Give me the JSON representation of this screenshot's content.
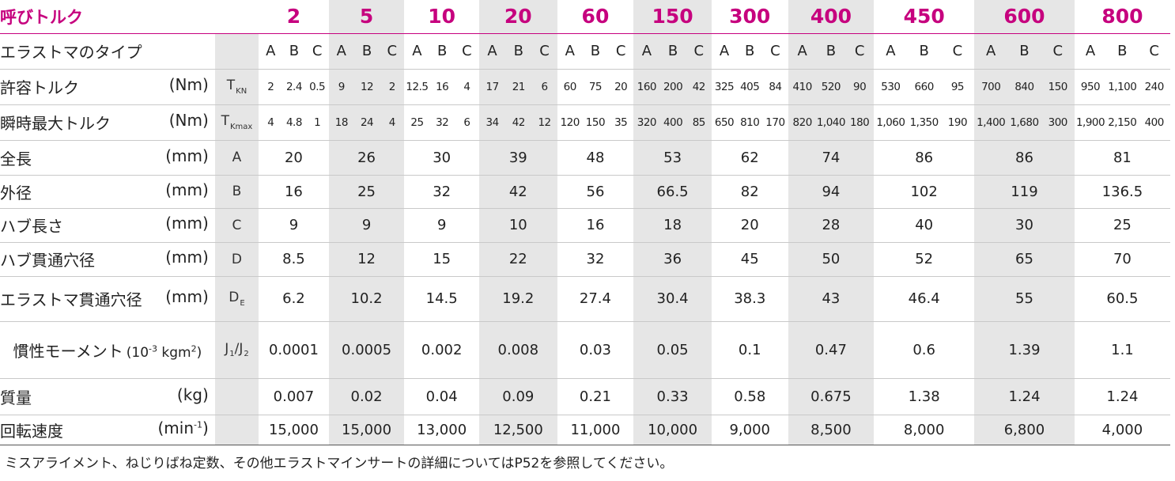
{
  "header": {
    "label": "呼びトルク",
    "sizes": [
      "2",
      "5",
      "10",
      "20",
      "60",
      "150",
      "300",
      "400",
      "450",
      "600",
      "800"
    ]
  },
  "elastomer_type": {
    "label": "エラストマのタイプ",
    "letters": [
      "A",
      "B",
      "C"
    ]
  },
  "rated_torque": {
    "label": "許容トルク",
    "unit": "(Nm)",
    "symbol": "T",
    "symbol_sub": "KN",
    "values": [
      "2",
      "2.4",
      "0.5",
      "9",
      "12",
      "2",
      "12.5",
      "16",
      "4",
      "17",
      "21",
      "6",
      "60",
      "75",
      "20",
      "160",
      "200",
      "42",
      "325",
      "405",
      "84",
      "410",
      "520",
      "90",
      "530",
      "660",
      "95",
      "700",
      "840",
      "150",
      "950",
      "1,100",
      "240"
    ]
  },
  "max_torque": {
    "label": "瞬時最大トルク",
    "unit": "(Nm)",
    "symbol": "T",
    "symbol_sub": "Kmax",
    "values": [
      "4",
      "4.8",
      "1",
      "18",
      "24",
      "4",
      "25",
      "32",
      "6",
      "34",
      "42",
      "12",
      "120",
      "150",
      "35",
      "320",
      "400",
      "85",
      "650",
      "810",
      "170",
      "820",
      "1,040",
      "180",
      "1,060",
      "1,350",
      "190",
      "1,400",
      "1,680",
      "300",
      "1,900",
      "2,150",
      "400"
    ]
  },
  "dimensions": [
    {
      "label": "全長",
      "unit": "(mm)",
      "symbol": "A",
      "values": [
        "20",
        "26",
        "30",
        "39",
        "48",
        "53",
        "62",
        "74",
        "86",
        "86",
        "81"
      ]
    },
    {
      "label": "外径",
      "unit": "(mm)",
      "symbol": "B",
      "values": [
        "16",
        "25",
        "32",
        "42",
        "56",
        "66.5",
        "82",
        "94",
        "102",
        "119",
        "136.5"
      ]
    },
    {
      "label": "ハブ長さ",
      "unit": "(mm)",
      "symbol": "C",
      "values": [
        "9",
        "9",
        "9",
        "10",
        "16",
        "18",
        "20",
        "28",
        "40",
        "30",
        "25"
      ]
    },
    {
      "label": "ハブ貫通穴径",
      "unit": "(mm)",
      "symbol": "D",
      "values": [
        "8.5",
        "12",
        "15",
        "22",
        "32",
        "36",
        "45",
        "50",
        "52",
        "65",
        "70"
      ]
    }
  ],
  "elastomer_bore": {
    "label": "エラストマ貫通穴径",
    "unit": "(mm)",
    "symbol": "D",
    "symbol_sub": "E",
    "values": [
      "6.2",
      "10.2",
      "14.5",
      "19.2",
      "27.4",
      "30.4",
      "38.3",
      "43",
      "46.4",
      "55",
      "60.5"
    ]
  },
  "inertia": {
    "label": "慣性モーメント",
    "unit_pre": "(10",
    "unit_exp": "-3",
    "unit_mid": " kgm",
    "unit_exp2": "2",
    "unit_post": ")",
    "symbol1": "J",
    "sub1": "1",
    "slash": "/",
    "symbol2": "J",
    "sub2": "2",
    "values": [
      "0.0001",
      "0.0005",
      "0.002",
      "0.008",
      "0.03",
      "0.05",
      "0.1",
      "0.47",
      "0.6",
      "1.39",
      "1.1"
    ]
  },
  "mass": {
    "label": "質量",
    "unit": "(kg)",
    "values": [
      "0.007",
      "0.02",
      "0.04",
      "0.09",
      "0.21",
      "0.33",
      "0.58",
      "0.675",
      "1.38",
      "1.24",
      "1.24"
    ]
  },
  "speed": {
    "label": "回転速度",
    "unit_pre": "(min",
    "unit_exp": "-1",
    "unit_post": ")",
    "values": [
      "15,000",
      "15,000",
      "13,000",
      "12,500",
      "11,000",
      "10,000",
      "9,000",
      "8,500",
      "8,000",
      "6,800",
      "4,000"
    ]
  },
  "footnote": "ミスアライメント、ねじりばね定数、その他エラストマインサートの詳細についてはP52を参照してください。",
  "colors": {
    "accent": "#c6007e",
    "shade": "#e6e6e6",
    "text": "#222222",
    "rule": "#c9c9c9"
  }
}
